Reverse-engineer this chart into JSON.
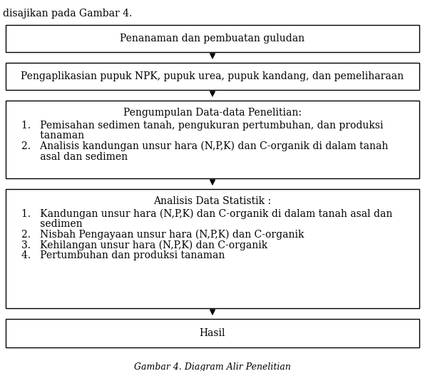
{
  "background_color": "#ffffff",
  "header_text": "disajikan pada Gambar 4.",
  "header_fontsize": 10,
  "box1": {
    "text": "Penanaman dan pembuatan guludan",
    "fontsize": 10
  },
  "box2": {
    "text": "Pengaplikasian pupuk NPK, pupuk urea, pupuk kandang, dan pemeliharaan",
    "fontsize": 10
  },
  "box3": {
    "title": "Pengumpulan Data-data Penelitian:",
    "item1_line1": "1.   Pemisahan sedimen tanah, pengukuran pertumbuhan, dan produksi",
    "item1_line2": "      tanaman",
    "item2_line1": "2.   Analisis kandungan unsur hara (N,P,K) dan C-organik di dalam tanah",
    "item2_line2": "      asal dan sedimen",
    "fontsize": 10
  },
  "box4": {
    "title": "Analisis Data Statistik :",
    "item1_line1": "1.   Kandungan unsur hara (N,P,K) dan C-organik di dalam tanah asal dan",
    "item1_line2": "      sedimen",
    "item2": "2.   Nisbah Pengayaan unsur hara (N,P,K) dan C-organik",
    "item3": "3.   Kehilangan unsur hara (N,P,K) dan C-organik",
    "item4": "4.   Pertumbuhan dan produksi tanaman",
    "fontsize": 10
  },
  "box5": {
    "text": "Hasil",
    "fontsize": 10
  }
}
